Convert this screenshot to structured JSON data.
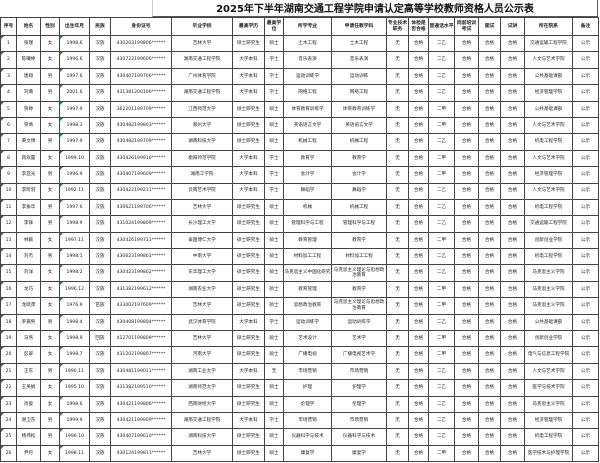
{
  "title": "2025年下半年湖南交通工程学院申请认定高等学校教师资格人员公示表",
  "columns": [
    "序号",
    "姓名",
    "性别",
    "出生年月",
    "民族",
    "身份证号",
    "毕业学校",
    "最高学历",
    "最高学位",
    "所学专业",
    "申请任教学科",
    "专业技术职务",
    "体检是否合格",
    "普通话水平",
    "岗前培训考试",
    "面试",
    "试讲",
    "所在院系",
    "备注"
  ],
  "rows": [
    [
      "1",
      "张瑾",
      "女",
      "1998.6",
      "汉族",
      "430203199806******",
      "吉林大学",
      "硕士研究生",
      "硕士",
      "土木工程",
      "土木工程",
      "无",
      "合格",
      "二乙",
      "合格",
      "合格",
      "合格",
      "交通运输工程学院",
      "公示"
    ],
    [
      "2",
      "陈曦婷",
      "女",
      "1996.6",
      "汉族",
      "430722199606******",
      "湖南交通工程学院",
      "大学本科",
      "学士",
      "音乐表演",
      "音乐表演",
      "无",
      "合格",
      "二乙",
      "合格",
      "合格",
      "合格",
      "人文与艺术学院",
      "公示"
    ],
    [
      "3",
      "唐翔",
      "男",
      "1997.6",
      "汉族",
      "430407199706******",
      "广州体育学院",
      "大学本科",
      "学士",
      "运动训练学",
      "运动训练",
      "无",
      "合格",
      "二乙",
      "合格",
      "合格",
      "合格",
      "公共基础课部",
      "公示"
    ],
    [
      "4",
      "刘璐",
      "男",
      "2001.6",
      "汉族",
      "431381200106******",
      "湖南交通工程学院",
      "大学本科",
      "学士",
      "网络工程",
      "网络工程",
      "无",
      "合格",
      "二乙",
      "合格",
      "合格",
      "合格",
      "经济管理学院",
      "公示"
    ],
    [
      "5",
      "贺婷",
      "女",
      "1997.9",
      "汉族",
      "362201199709******",
      "江西师范大学",
      "硕士研究生",
      "硕士",
      "体育教育训练学",
      "体育教育训练学",
      "无",
      "合格",
      "二甲",
      "合格",
      "合格",
      "合格",
      "公共基础课部",
      "公示"
    ],
    [
      "6",
      "贺倩",
      "女",
      "1998.3",
      "汉族",
      "430482199803******",
      "郑州大学",
      "硕士研究生",
      "硕士",
      "英语语言文学",
      "英语语言文学",
      "无",
      "合格",
      "二甲",
      "合格",
      "合格",
      "合格",
      "人文与艺术学院",
      "公示"
    ],
    [
      "7",
      "黄文博",
      "男",
      "1997.9",
      "汉族",
      "430482199709******",
      "湖南科技大学",
      "硕士研究生",
      "硕士",
      "机械工程",
      "机械工程",
      "无",
      "合格",
      "二乙",
      "合格",
      "合格",
      "合格",
      "机电工程学院",
      "公示"
    ],
    [
      "8",
      "蒋欢蕾",
      "女",
      "1999.10",
      "汉族",
      "430426199910******",
      "衡阳师范学院",
      "大学本科",
      "学士",
      "教育学",
      "教育学",
      "无",
      "合格",
      "二甲",
      "合格",
      "合格",
      "合格",
      "人文与艺术学院",
      "公示"
    ],
    [
      "9",
      "李亚光",
      "男",
      "1996.9",
      "汉族",
      "430407199609******",
      "湖南工学院",
      "大学本科",
      "学士",
      "会计学",
      "会计学",
      "无",
      "合格",
      "二甲",
      "合格",
      "合格",
      "合格",
      "经济管理学院",
      "公示"
    ],
    [
      "10",
      "李昕羽",
      "女",
      "1992.11",
      "汉族",
      "430422199211******",
      "云南艺术学院",
      "大学本科",
      "学士",
      "舞蹈学",
      "舞蹈学",
      "无",
      "合格",
      "二乙",
      "合格",
      "合格",
      "合格",
      "人文与艺术学院",
      "公示"
    ],
    [
      "11",
      "李振华",
      "男",
      "1997.6",
      "汉族",
      "430621199706******",
      "吉林大学",
      "硕士研究生",
      "硕士",
      "机械",
      "机械工程",
      "无",
      "合格",
      "二乙",
      "合格",
      "合格",
      "合格",
      "机电工程学院",
      "公示"
    ],
    [
      "12",
      "李锋",
      "男",
      "1998.9",
      "汉族",
      "431024199809******",
      "长沙理工大学",
      "硕士研究生",
      "硕士",
      "管理科学与工程",
      "管理科学与工程",
      "无",
      "合格",
      "二乙",
      "合格",
      "合格",
      "合格",
      "交通运输工程学院",
      "公示"
    ],
    [
      "13",
      "林颖",
      "女",
      "1997.11",
      "汉族",
      "430426199711******",
      "泰国博仁大学",
      "硕士研究生",
      "硕士",
      "教育管理",
      "教育学",
      "无",
      "合格",
      "二甲",
      "合格",
      "合格",
      "合格",
      "创新创业学院",
      "公示"
    ],
    [
      "14",
      "刘杰",
      "男",
      "1998.1",
      "汉族",
      "430623199801******",
      "中南大学",
      "硕士研究生",
      "硕士",
      "材料加工工程",
      "材料加工工程",
      "无",
      "合格",
      "二乙",
      "合格",
      "合格",
      "合格",
      "机电工程学院",
      "公示"
    ],
    [
      "15",
      "刘洋",
      "女",
      "1998.2",
      "汉族",
      "430423199802******",
      "东华理工大学",
      "硕士研究生",
      "硕士",
      "马克思主义中国化研究",
      "马克思主义理论与思想政治教育",
      "无",
      "合格",
      "二乙",
      "合格",
      "合格",
      "合格",
      "马克思主义学院",
      "公示"
    ],
    [
      "16",
      "龙巧",
      "女",
      "1996.12",
      "汉族",
      "431382199612******",
      "湖南农业大学",
      "硕士研究生",
      "硕士",
      "教育管理",
      "教育学",
      "无",
      "合格",
      "二甲",
      "合格",
      "合格",
      "合格",
      "马克思主义学院",
      "公示"
    ],
    [
      "17",
      "龙晓萍",
      "女",
      "1976.9",
      "苗族",
      "433002197609******",
      "吉林大学",
      "硕士研究生",
      "硕士",
      "思想政治教育",
      "马克思主义理论与思想政治教育",
      "无",
      "合格",
      "二甲",
      "合格",
      "合格",
      "合格",
      "马克思主义学院",
      "公示"
    ],
    [
      "18",
      "罗嘉熙",
      "男",
      "1998.4",
      "汉族",
      "430408199804******",
      "武汉体育学院",
      "大学本科",
      "学士",
      "运动训练学",
      "运动训练学",
      "无",
      "合格",
      "二乙",
      "合格",
      "合格",
      "合格",
      "公共基础课部",
      "公示"
    ],
    [
      "19",
      "马燕",
      "女",
      "1998.9",
      "回族",
      "412701199809******",
      "吉林大学",
      "硕士研究生",
      "硕士",
      "艺术设计",
      "艺术学",
      "无",
      "合格",
      "二甲",
      "合格",
      "合格",
      "合格",
      "创新创业学院",
      "公示"
    ],
    [
      "20",
      "彭翠",
      "女",
      "1998.7",
      "汉族",
      "431202199807******",
      "河南大学",
      "硕士研究生",
      "硕士",
      "广播电视",
      "广播电视艺术学",
      "无",
      "合格",
      "二甲",
      "合格",
      "合格",
      "合格",
      "电气与信息工程学院",
      "公示"
    ],
    [
      "21",
      "王东",
      "男",
      "1990.11",
      "汉族",
      "430481199011******",
      "湖南工业大学",
      "大学本科",
      "无",
      "市场营销",
      "市场营销",
      "无",
      "合格",
      "二乙",
      "合格",
      "合格",
      "合格",
      "人文与艺术学院",
      "公示"
    ],
    [
      "22",
      "王英娟",
      "女",
      "1995.10",
      "汉族",
      "431382199510******",
      "湖南师范大学",
      "硕士研究生",
      "硕士",
      "护理",
      "护理学",
      "无",
      "合格",
      "二乙",
      "合格",
      "合格",
      "合格",
      "医学与技术学院",
      "公示"
    ],
    [
      "23",
      "肖俊",
      "女",
      "1998.6",
      "汉族",
      "430421199806******",
      "西南财经大学",
      "硕士研究生",
      "硕士",
      "伦理学",
      "伦理学",
      "无",
      "合格",
      "二乙",
      "合格",
      "合格",
      "合格",
      "马克思主义学院",
      "公示"
    ],
    [
      "24",
      "谢卫东",
      "男",
      "1999.9",
      "汉族",
      "430421199909******",
      "湖南交通工程学院",
      "大学本科",
      "学士",
      "市场营销",
      "市场营销",
      "无",
      "合格",
      "二乙",
      "合格",
      "合格",
      "合格",
      "经济管理学院",
      "公示"
    ],
    [
      "25",
      "杨伟松",
      "男",
      "1996.10",
      "汉族",
      "430407199610******",
      "湖南科技大学",
      "硕士研究生",
      "硕士",
      "仪器科学与技术",
      "仪器科学与技术",
      "无",
      "合格",
      "二乙",
      "合格",
      "合格",
      "合格",
      "机电工程学院",
      "公示"
    ],
    [
      "26",
      "尹丹",
      "女",
      "1998.11",
      "汉族",
      "430124199811******",
      "吉林大学",
      "硕士研究生",
      "硕士",
      "康复学",
      "康复学",
      "无",
      "合格",
      "二甲",
      "合格",
      "合格",
      "合格",
      "医学技术与护理学院",
      "公示"
    ]
  ]
}
